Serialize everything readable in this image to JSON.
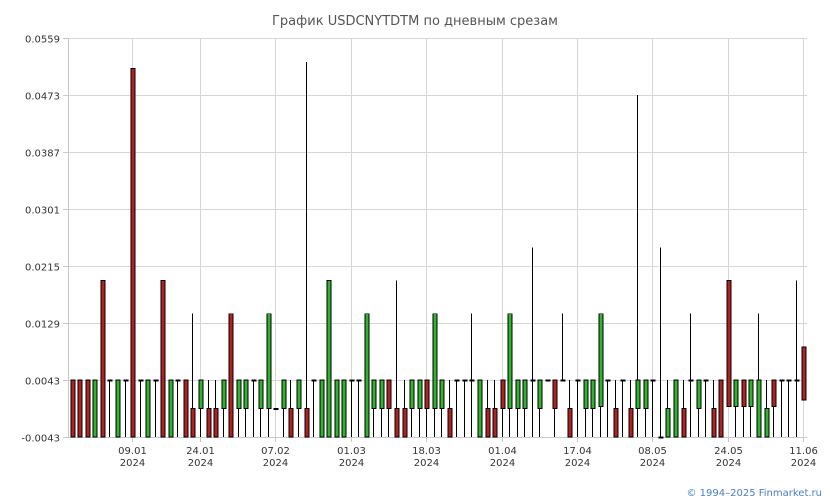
{
  "chart_data": {
    "type": "candlestick",
    "title": "График USDCNYTDTM по дневным срезам",
    "ylim": [
      -0.0043,
      0.0559
    ],
    "y_ticks": [
      "0.0559",
      "0.0473",
      "0.0387",
      "0.0301",
      "0.0215",
      "0.0129",
      "0.0043",
      "-0.0043"
    ],
    "x_ticks": [
      {
        "day": "09.01",
        "year": "2024",
        "index": 8
      },
      {
        "day": "24.01",
        "year": "2024",
        "index": 17
      },
      {
        "day": "07.02",
        "year": "2024",
        "index": 27
      },
      {
        "day": "01.03",
        "year": "2024",
        "index": 37
      },
      {
        "day": "18.03",
        "year": "2024",
        "index": 47
      },
      {
        "day": "01.04",
        "year": "2024",
        "index": 57
      },
      {
        "day": "17.04",
        "year": "2024",
        "index": 67
      },
      {
        "day": "08.05",
        "year": "2024",
        "index": 77
      },
      {
        "day": "24.05",
        "year": "2024",
        "index": 87
      },
      {
        "day": "11.06",
        "year": "2024",
        "index": 97
      }
    ],
    "colors": {
      "up": "#2db52d",
      "down": "#b22222",
      "grid": "#d6d6d6"
    },
    "candles": [
      {
        "o": 0.0043,
        "h": 0.0043,
        "l": -0.0043,
        "c": -0.0043
      },
      {
        "o": 0.0043,
        "h": 0.0043,
        "l": -0.0043,
        "c": -0.0043
      },
      {
        "o": 0.0043,
        "h": 0.0043,
        "l": -0.0043,
        "c": -0.0043
      },
      {
        "o": -0.0043,
        "h": 0.0043,
        "l": -0.0043,
        "c": 0.0043
      },
      {
        "o": 0.0193,
        "h": 0.0193,
        "l": -0.0043,
        "c": -0.0043
      },
      {
        "o": 0.0043,
        "h": 0.0043,
        "l": -0.0043,
        "c": 0.0043
      },
      {
        "o": -0.0043,
        "h": 0.0043,
        "l": -0.0043,
        "c": 0.0043
      },
      {
        "o": 0.0043,
        "h": 0.0043,
        "l": -0.0043,
        "c": 0.0043
      },
      {
        "o": 0.0513,
        "h": 0.0513,
        "l": -0.0043,
        "c": -0.0043
      },
      {
        "o": 0.0043,
        "h": 0.0043,
        "l": -0.0043,
        "c": 0.0043
      },
      {
        "o": -0.0043,
        "h": 0.0043,
        "l": -0.0043,
        "c": 0.0043
      },
      {
        "o": 0.0043,
        "h": 0.0043,
        "l": -0.0043,
        "c": 0.0043
      },
      {
        "o": 0.0193,
        "h": 0.0193,
        "l": -0.0043,
        "c": -0.0043
      },
      {
        "o": -0.0043,
        "h": 0.0043,
        "l": -0.0043,
        "c": 0.0043
      },
      {
        "o": 0.0043,
        "h": 0.0043,
        "l": -0.0043,
        "c": 0.0043
      },
      {
        "o": 0.0043,
        "h": 0.0043,
        "l": -0.0043,
        "c": -0.0043
      },
      {
        "o": 0.0,
        "h": 0.0143,
        "l": -0.0043,
        "c": -0.0043
      },
      {
        "o": 0.0,
        "h": 0.0043,
        "l": -0.0043,
        "c": 0.0043
      },
      {
        "o": 0.0,
        "h": 0.0043,
        "l": -0.0043,
        "c": -0.0043
      },
      {
        "o": 0.0,
        "h": 0.0043,
        "l": -0.0043,
        "c": -0.0043
      },
      {
        "o": 0.0,
        "h": 0.0043,
        "l": -0.0043,
        "c": 0.0043
      },
      {
        "o": 0.0143,
        "h": 0.0143,
        "l": -0.0043,
        "c": -0.0043
      },
      {
        "o": 0.0,
        "h": 0.0043,
        "l": -0.0043,
        "c": 0.0043
      },
      {
        "o": 0.0,
        "h": 0.0043,
        "l": -0.0043,
        "c": 0.0043
      },
      {
        "o": 0.0043,
        "h": 0.0043,
        "l": -0.0043,
        "c": 0.0043
      },
      {
        "o": 0.0,
        "h": 0.0043,
        "l": -0.0043,
        "c": 0.0043
      },
      {
        "o": 0.0,
        "h": 0.0143,
        "l": -0.0043,
        "c": 0.0143
      },
      {
        "o": 0.0,
        "h": 0.0,
        "l": 0.0,
        "c": 0.0
      },
      {
        "o": 0.0,
        "h": 0.0043,
        "l": -0.0043,
        "c": 0.0043
      },
      {
        "o": 0.0,
        "h": 0.0043,
        "l": -0.0043,
        "c": -0.0043
      },
      {
        "o": 0.0,
        "h": 0.0043,
        "l": -0.0043,
        "c": 0.0043
      },
      {
        "o": 0.0,
        "h": 0.0523,
        "l": -0.0043,
        "c": -0.0043
      },
      {
        "o": 0.0043,
        "h": 0.0043,
        "l": -0.0043,
        "c": 0.0043
      },
      {
        "o": -0.0043,
        "h": 0.0043,
        "l": -0.0043,
        "c": 0.0043
      },
      {
        "o": -0.0043,
        "h": 0.0193,
        "l": -0.0043,
        "c": 0.0193
      },
      {
        "o": -0.0043,
        "h": 0.0043,
        "l": -0.0043,
        "c": 0.0043
      },
      {
        "o": -0.0043,
        "h": 0.0043,
        "l": -0.0043,
        "c": 0.0043
      },
      {
        "o": 0.0043,
        "h": 0.0043,
        "l": -0.0043,
        "c": 0.0043
      },
      {
        "o": 0.0043,
        "h": 0.0043,
        "l": -0.0043,
        "c": 0.0043
      },
      {
        "o": -0.0043,
        "h": 0.0143,
        "l": -0.0043,
        "c": 0.0143
      },
      {
        "o": 0.0,
        "h": 0.0043,
        "l": -0.0043,
        "c": 0.0043
      },
      {
        "o": 0.0,
        "h": 0.0043,
        "l": -0.0043,
        "c": 0.0043
      },
      {
        "o": 0.0043,
        "h": 0.0043,
        "l": -0.0043,
        "c": 0.0
      },
      {
        "o": 0.0,
        "h": 0.0193,
        "l": -0.0043,
        "c": -0.0043
      },
      {
        "o": 0.0,
        "h": 0.0043,
        "l": -0.0043,
        "c": -0.0043
      },
      {
        "o": 0.0,
        "h": 0.0043,
        "l": -0.0043,
        "c": 0.0043
      },
      {
        "o": 0.0,
        "h": 0.0043,
        "l": -0.0043,
        "c": 0.0043
      },
      {
        "o": 0.0043,
        "h": 0.0043,
        "l": -0.0043,
        "c": 0.0
      },
      {
        "o": 0.0,
        "h": 0.0143,
        "l": -0.0043,
        "c": 0.0143
      },
      {
        "o": 0.0,
        "h": 0.0043,
        "l": -0.0043,
        "c": 0.0043
      },
      {
        "o": 0.0,
        "h": 0.0043,
        "l": -0.0043,
        "c": -0.0043
      },
      {
        "o": 0.0043,
        "h": 0.0043,
        "l": -0.0043,
        "c": 0.0043
      },
      {
        "o": 0.0043,
        "h": 0.0043,
        "l": -0.0043,
        "c": 0.0043
      },
      {
        "o": 0.0043,
        "h": 0.0143,
        "l": -0.0043,
        "c": 0.0043
      },
      {
        "o": -0.0043,
        "h": 0.0043,
        "l": -0.0043,
        "c": 0.0043
      },
      {
        "o": 0.0,
        "h": 0.0043,
        "l": -0.0043,
        "c": -0.0043
      },
      {
        "o": 0.0,
        "h": 0.0043,
        "l": -0.0043,
        "c": -0.0043
      },
      {
        "o": 0.0043,
        "h": 0.0043,
        "l": -0.0043,
        "c": 0.0
      },
      {
        "o": 0.0,
        "h": 0.0143,
        "l": -0.0043,
        "c": 0.0143
      },
      {
        "o": 0.0,
        "h": 0.0043,
        "l": -0.0043,
        "c": 0.0043
      },
      {
        "o": 0.0,
        "h": 0.0043,
        "l": -0.0043,
        "c": 0.0043
      },
      {
        "o": 0.0043,
        "h": 0.0243,
        "l": -0.0043,
        "c": 0.0043
      },
      {
        "o": 0.0,
        "h": 0.0043,
        "l": -0.0043,
        "c": 0.0043
      },
      {
        "o": 0.0043,
        "h": 0.0043,
        "l": 0.0043,
        "c": 0.0043
      },
      {
        "o": 0.0043,
        "h": 0.0043,
        "l": -0.0043,
        "c": 0.0
      },
      {
        "o": 0.0043,
        "h": 0.0143,
        "l": 0.0043,
        "c": 0.0043
      },
      {
        "o": 0.0,
        "h": 0.0043,
        "l": -0.0043,
        "c": -0.0043
      },
      {
        "o": 0.0043,
        "h": 0.0043,
        "l": -0.0043,
        "c": 0.0043
      },
      {
        "o": 0.0,
        "h": 0.0043,
        "l": -0.0043,
        "c": 0.0043
      },
      {
        "o": 0.0,
        "h": 0.0043,
        "l": -0.0043,
        "c": 0.0043
      },
      {
        "o": 0.0003,
        "h": 0.0143,
        "l": -0.0043,
        "c": 0.0143
      },
      {
        "o": 0.0043,
        "h": 0.0043,
        "l": -0.0043,
        "c": 0.0043
      },
      {
        "o": 0.0,
        "h": 0.0043,
        "l": -0.0043,
        "c": -0.0043
      },
      {
        "o": 0.0043,
        "h": 0.0043,
        "l": -0.0043,
        "c": 0.0043
      },
      {
        "o": 0.0,
        "h": 0.0043,
        "l": -0.0043,
        "c": -0.0043
      },
      {
        "o": 0.0,
        "h": 0.0473,
        "l": -0.0043,
        "c": 0.0043
      },
      {
        "o": 0.0,
        "h": 0.0043,
        "l": -0.0043,
        "c": 0.0043
      },
      {
        "o": 0.0043,
        "h": 0.0043,
        "l": -0.0043,
        "c": 0.0043
      },
      {
        "o": -0.0043,
        "h": 0.0243,
        "l": -0.0043,
        "c": -0.0043
      },
      {
        "o": -0.0043,
        "h": 0.0043,
        "l": -0.0043,
        "c": 0.0
      },
      {
        "o": -0.0043,
        "h": 0.0043,
        "l": -0.0043,
        "c": 0.0043
      },
      {
        "o": 0.0,
        "h": 0.0043,
        "l": -0.0043,
        "c": -0.0043
      },
      {
        "o": 0.0043,
        "h": 0.0143,
        "l": -0.0043,
        "c": 0.0043
      },
      {
        "o": 0.0,
        "h": 0.0043,
        "l": -0.0043,
        "c": 0.0043
      },
      {
        "o": 0.0043,
        "h": 0.0043,
        "l": -0.0043,
        "c": 0.0043
      },
      {
        "o": 0.0,
        "h": 0.0043,
        "l": -0.0043,
        "c": -0.0043
      },
      {
        "o": 0.0043,
        "h": 0.0043,
        "l": -0.0043,
        "c": -0.0043
      },
      {
        "o": 0.0193,
        "h": 0.0193,
        "l": 0.0003,
        "c": 0.0003
      },
      {
        "o": 0.0003,
        "h": 0.0043,
        "l": -0.0043,
        "c": 0.0043
      },
      {
        "o": 0.0043,
        "h": 0.0043,
        "l": -0.0043,
        "c": 0.0003
      },
      {
        "o": 0.0003,
        "h": 0.0043,
        "l": -0.0043,
        "c": 0.0043
      },
      {
        "o": -0.0043,
        "h": 0.0143,
        "l": -0.0043,
        "c": 0.0043
      },
      {
        "o": -0.0043,
        "h": 0.0043,
        "l": -0.0043,
        "c": 0.0
      },
      {
        "o": 0.0043,
        "h": 0.0043,
        "l": -0.0043,
        "c": 0.0003
      },
      {
        "o": 0.0043,
        "h": 0.0043,
        "l": -0.0043,
        "c": 0.0043
      },
      {
        "o": 0.0043,
        "h": 0.0043,
        "l": -0.0043,
        "c": 0.0043
      },
      {
        "o": 0.0043,
        "h": 0.0193,
        "l": -0.0043,
        "c": 0.0043
      },
      {
        "o": 0.0093,
        "h": 0.0093,
        "l": 0.0013,
        "c": 0.0013
      }
    ]
  },
  "footer": {
    "credit": "© 1994–2025 Finmarket.ru"
  }
}
